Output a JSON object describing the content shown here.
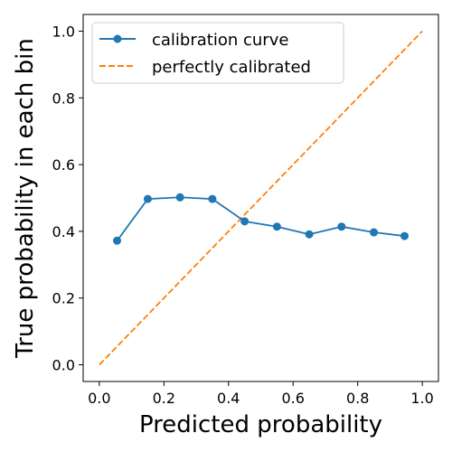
{
  "chart_data": {
    "type": "line",
    "xlabel": "Predicted probability",
    "ylabel": "True probability in each bin",
    "xlim": [
      -0.05,
      1.05
    ],
    "ylim": [
      -0.05,
      1.05
    ],
    "xticks": [
      "0.0",
      "0.2",
      "0.4",
      "0.6",
      "0.8",
      "1.0"
    ],
    "yticks": [
      "0.0",
      "0.2",
      "0.4",
      "0.6",
      "0.8",
      "1.0"
    ],
    "grid": false,
    "legend_position": "upper-left",
    "series": [
      {
        "name": "calibration curve",
        "color": "#1f77b4",
        "style": "solid-with-circle-markers",
        "x": [
          0.055,
          0.15,
          0.25,
          0.35,
          0.45,
          0.55,
          0.65,
          0.75,
          0.85,
          0.945
        ],
        "y": [
          0.372,
          0.497,
          0.502,
          0.497,
          0.43,
          0.414,
          0.391,
          0.414,
          0.397,
          0.386
        ]
      },
      {
        "name": "perfectly calibrated",
        "color": "#ff7f0e",
        "style": "dashed",
        "x": [
          0,
          1
        ],
        "y": [
          0,
          1
        ]
      }
    ]
  }
}
